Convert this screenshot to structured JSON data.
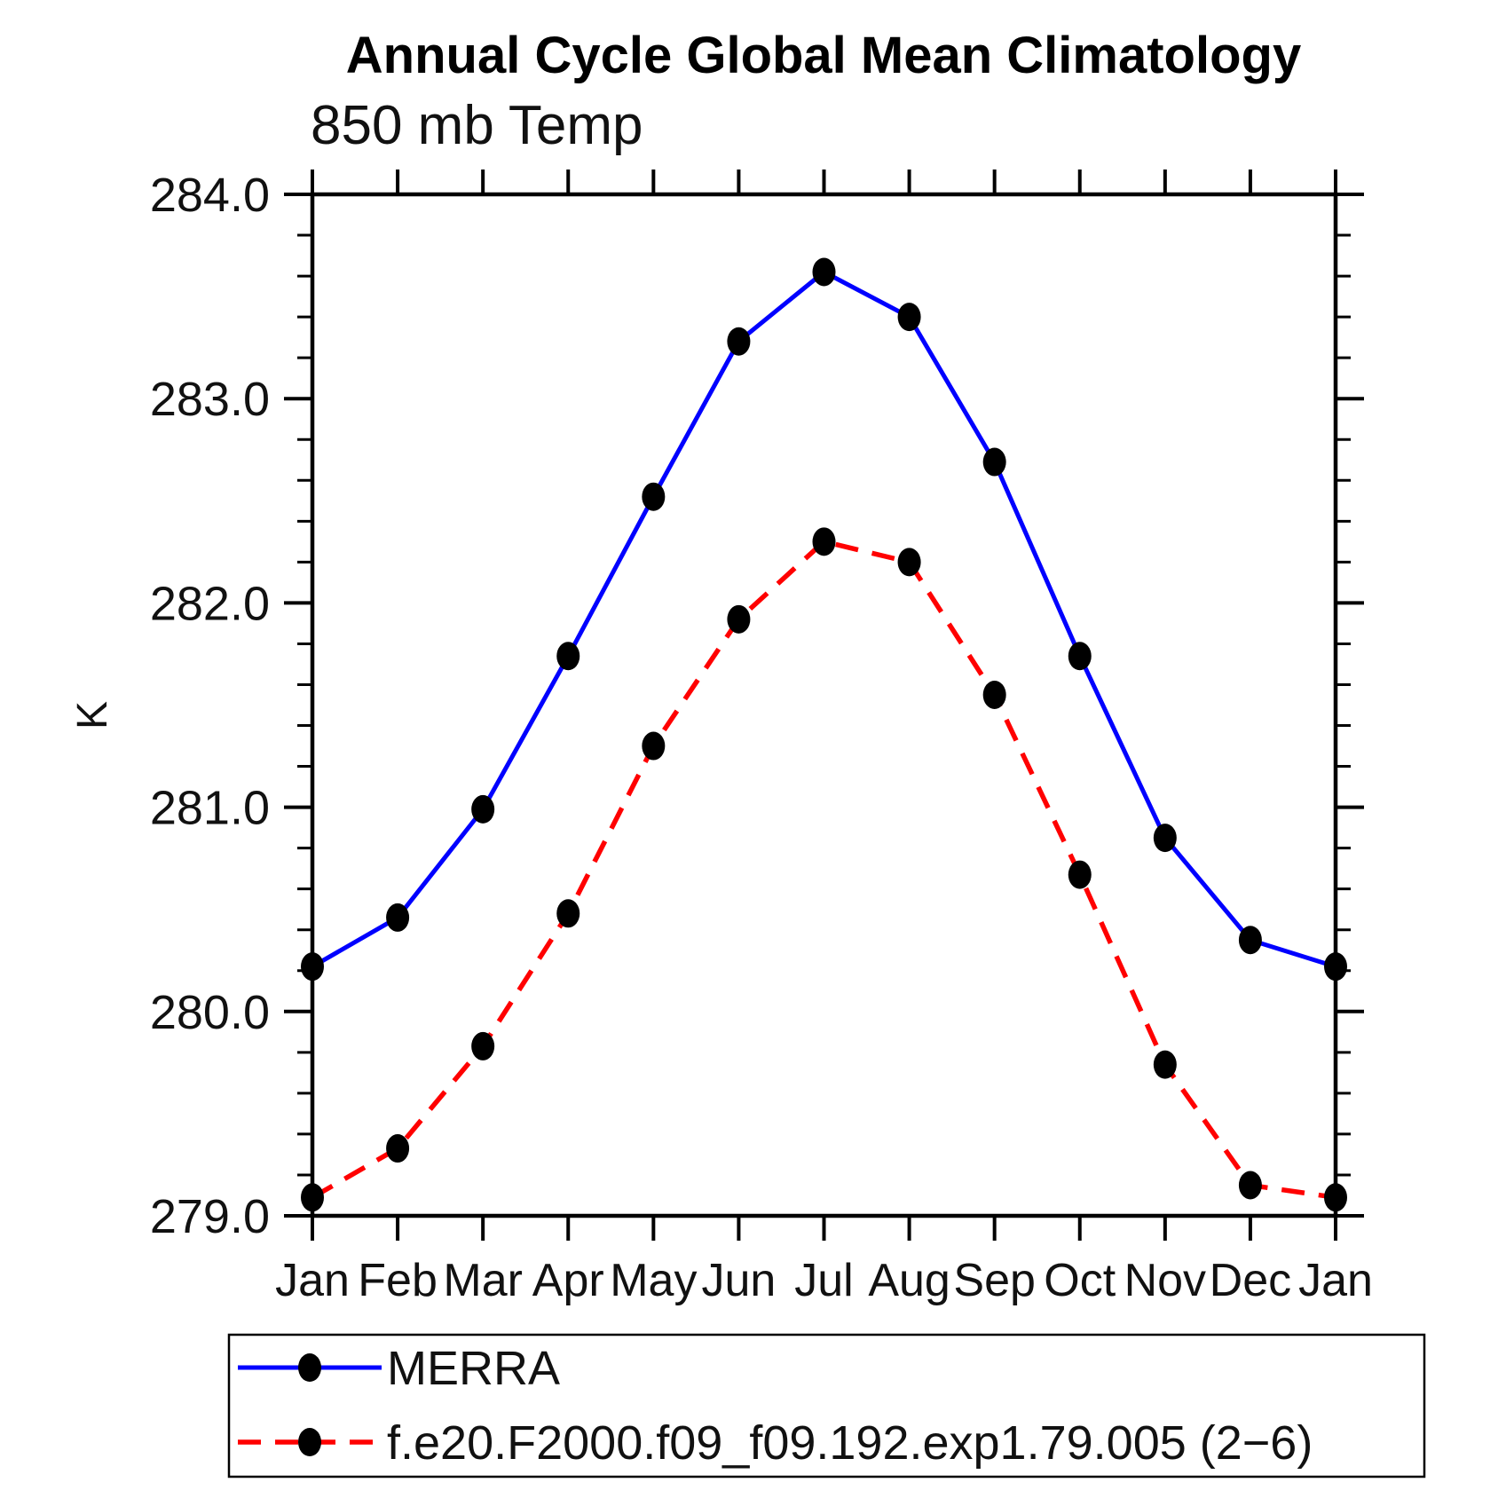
{
  "title": "Annual Cycle Global Mean Climatology",
  "subtitle": "850 mb Temp",
  "y_axis": {
    "label": "K",
    "min": 279.0,
    "max": 284.0,
    "major_tick_step": 1.0,
    "minor_tick_step": 0.2,
    "tick_labels": [
      "284.0",
      "283.0",
      "282.0",
      "281.0",
      "280.0",
      "279.0"
    ]
  },
  "x_axis": {
    "tick_labels": [
      "Jan",
      "Feb",
      "Mar",
      "Apr",
      "May",
      "Jun",
      "Jul",
      "Aug",
      "Sep",
      "Oct",
      "Nov",
      "Dec",
      "Jan"
    ]
  },
  "legend": {
    "position": "bottom",
    "items": [
      {
        "label": "MERRA",
        "line_style": "solid",
        "color": "#0000ff"
      },
      {
        "label": "f.e20.F2000.f09_f09.192.exp1.79.005 (2−6)",
        "line_style": "dashed",
        "color": "#ff0000"
      }
    ]
  },
  "chart_data": {
    "type": "line",
    "title": "850 mb Temp",
    "suptitle": "Annual Cycle Global Mean Climatology",
    "ylabel": "K",
    "ylim": [
      279.0,
      284.0
    ],
    "grid": false,
    "legend_position": "bottom",
    "marker": "filled-circle",
    "marker_color": "#000000",
    "x": [
      "Jan",
      "Feb",
      "Mar",
      "Apr",
      "May",
      "Jun",
      "Jul",
      "Aug",
      "Sep",
      "Oct",
      "Nov",
      "Dec",
      "Jan"
    ],
    "series": [
      {
        "name": "MERRA",
        "color": "#0000ff",
        "line_style": "solid",
        "values": [
          280.22,
          280.46,
          280.99,
          281.74,
          282.52,
          283.28,
          283.62,
          283.4,
          282.69,
          281.74,
          280.85,
          280.35,
          280.22
        ]
      },
      {
        "name": "f.e20.F2000.f09_f09.192.exp1.79.005 (2−6)",
        "color": "#ff0000",
        "line_style": "dashed",
        "values": [
          279.09,
          279.33,
          279.83,
          280.48,
          281.3,
          281.92,
          282.3,
          282.2,
          281.55,
          280.67,
          279.74,
          279.15,
          279.09
        ]
      }
    ]
  }
}
